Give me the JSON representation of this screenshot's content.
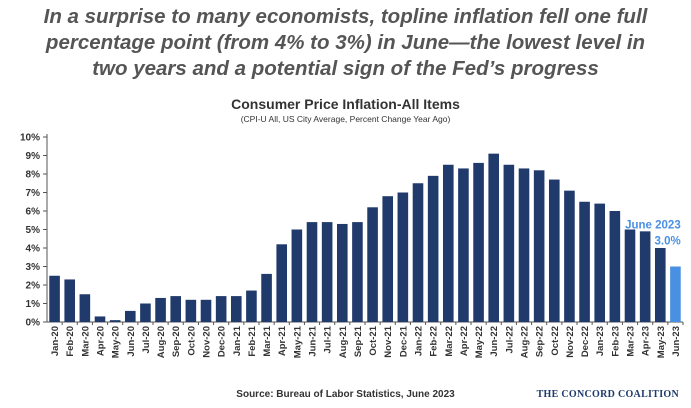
{
  "headline": {
    "line1": "In a surprise to many economists, topline inflation fell one full",
    "line2": "percentage point (from 4% to 3%) in June—the lowest level in",
    "line3": "two years and a potential sign of the Fed’s progress"
  },
  "footer": {
    "source": "Source: Bureau of Labor Statistics, June 2023",
    "org": "THE CONCORD COALITION"
  },
  "colors": {
    "bar": "#1f3a6b",
    "highlight": "#4a90e2",
    "annotation": "#4a90e2"
  },
  "chart_data": {
    "type": "bar",
    "title": "Consumer Price Inflation-All Items",
    "subtitle": "(CPI-U All, US City Average, Percent Change Year Ago)",
    "xlabel": "",
    "ylabel": "",
    "ylim": [
      0,
      10
    ],
    "yticks": [
      "0%",
      "1%",
      "2%",
      "3%",
      "4%",
      "5%",
      "6%",
      "7%",
      "8%",
      "9%",
      "10%"
    ],
    "grid": false,
    "categories": [
      "Jan-20",
      "Feb-20",
      "Mar-20",
      "Apr-20",
      "May-20",
      "Jun-20",
      "Jul-20",
      "Aug-20",
      "Sep-20",
      "Oct-20",
      "Nov-20",
      "Dec-20",
      "Jan-21",
      "Feb-21",
      "Mar-21",
      "Apr-21",
      "May-21",
      "Jun-21",
      "Jul-21",
      "Aug-21",
      "Sep-21",
      "Oct-21",
      "Nov-21",
      "Dec-21",
      "Jan-22",
      "Feb-22",
      "Mar-22",
      "Apr-22",
      "May-22",
      "Jun-22",
      "Jul-22",
      "Aug-22",
      "Sep-22",
      "Oct-22",
      "Nov-22",
      "Dec-22",
      "Jan-23",
      "Feb-23",
      "Mar-23",
      "Apr-23",
      "May-23",
      "Jun-23"
    ],
    "values": [
      2.5,
      2.3,
      1.5,
      0.3,
      0.1,
      0.6,
      1.0,
      1.3,
      1.4,
      1.2,
      1.2,
      1.4,
      1.4,
      1.7,
      2.6,
      4.2,
      5.0,
      5.4,
      5.4,
      5.3,
      5.4,
      6.2,
      6.8,
      7.0,
      7.5,
      7.9,
      8.5,
      8.3,
      8.6,
      9.1,
      8.5,
      8.3,
      8.2,
      7.7,
      7.1,
      6.5,
      6.4,
      6.0,
      5.0,
      4.9,
      4.0,
      3.0
    ],
    "highlight_index": 41,
    "annotation": {
      "label": "June 2023",
      "value": "3.0%"
    }
  }
}
